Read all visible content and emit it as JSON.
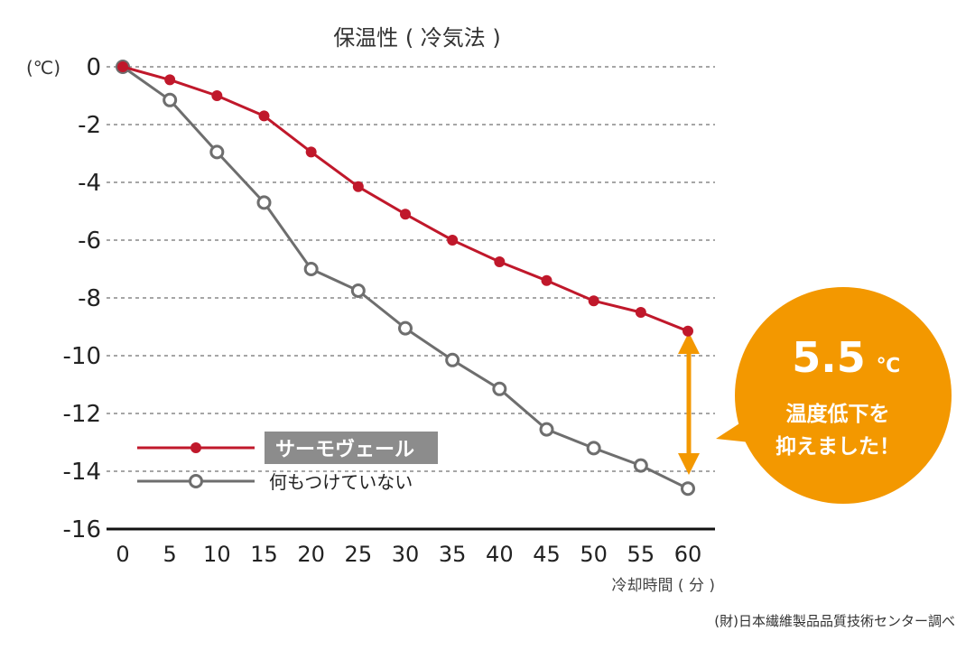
{
  "chart_data": {
    "type": "line",
    "title": "保温性 ( 冷気法 )",
    "ylabel": "(℃)",
    "xlabel": "冷却時間 ( 分 )",
    "x": [
      0,
      5,
      10,
      15,
      20,
      25,
      30,
      35,
      40,
      45,
      50,
      55,
      60
    ],
    "xlim": [
      0,
      60
    ],
    "ylim": [
      -16,
      0
    ],
    "yticks": [
      0,
      -2,
      -4,
      -6,
      -8,
      -10,
      -12,
      -14,
      -16
    ],
    "ytick_labels": [
      "0",
      "-2",
      "-4",
      "-6",
      "-8",
      "-10",
      "-12",
      "-14",
      "-16"
    ],
    "xtick_labels": [
      "0",
      "5",
      "10",
      "15",
      "20",
      "25",
      "30",
      "35",
      "40",
      "45",
      "50",
      "55",
      "60"
    ],
    "grid": true,
    "series": [
      {
        "name": "サーモヴェール",
        "color": "#c0182b",
        "marker": "filled",
        "values": [
          0,
          -0.45,
          -1.0,
          -1.7,
          -2.95,
          -4.15,
          -5.1,
          -6.0,
          -6.75,
          -7.4,
          -8.1,
          -8.5,
          -9.15
        ]
      },
      {
        "name": "何もつけていない",
        "color": "#6e6e6e",
        "marker": "hollow",
        "values": [
          0,
          -1.15,
          -2.95,
          -4.7,
          -7.0,
          -7.75,
          -9.05,
          -10.15,
          -11.15,
          -12.55,
          -13.2,
          -13.8,
          -14.6
        ]
      }
    ],
    "annotation": {
      "value": "5.5",
      "unit": "℃",
      "line1": "温度低下を",
      "line2": "抑えました！",
      "color": "#f39800"
    },
    "source": "(財)日本繊維製品品質技術センター調べ"
  }
}
